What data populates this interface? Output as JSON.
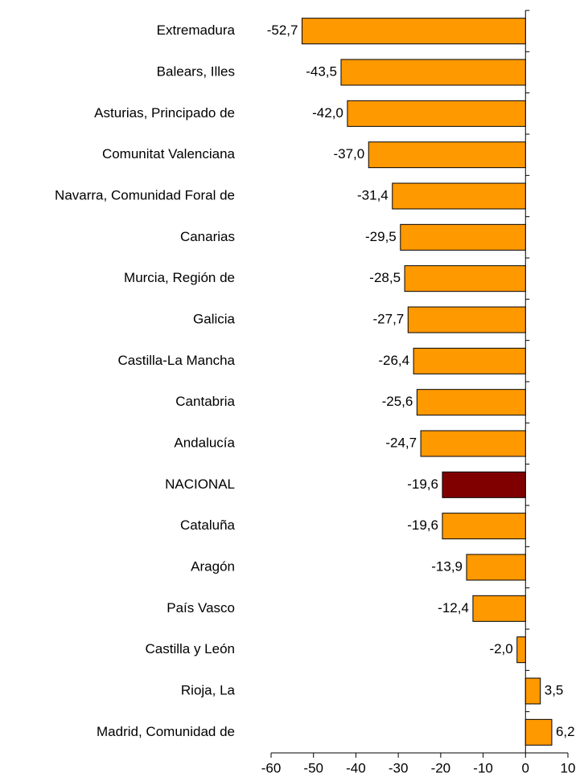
{
  "chart_data": {
    "type": "hbar",
    "categories": [
      "Extremadura",
      "Balears, Illes",
      "Asturias, Principado de",
      "Comunitat Valenciana",
      "Navarra, Comunidad Foral de",
      "Canarias",
      "Murcia, Región de",
      "Galicia",
      "Castilla-La Mancha",
      "Cantabria",
      "Andalucía",
      "NACIONAL",
      "Cataluña",
      "Aragón",
      "País Vasco",
      "Castilla y León",
      "Rioja, La",
      "Madrid, Comunidad de"
    ],
    "values": [
      -52.7,
      -43.5,
      -42.0,
      -37.0,
      -31.4,
      -29.5,
      -28.5,
      -27.7,
      -26.4,
      -25.6,
      -24.7,
      -19.6,
      -19.6,
      -13.9,
      -12.4,
      -2.0,
      3.5,
      6.2
    ],
    "value_labels": [
      "-52,7",
      "-43,5",
      "-42,0",
      "-37,0",
      "-31,4",
      "-29,5",
      "-28,5",
      "-27,7",
      "-26,4",
      "-25,6",
      "-24,7",
      "-19,6",
      "-19,6",
      "-13,9",
      "-12,4",
      "-2,0",
      "3,5",
      "6,2"
    ],
    "colors": [
      "#ff9900",
      "#ff9900",
      "#ff9900",
      "#ff9900",
      "#ff9900",
      "#ff9900",
      "#ff9900",
      "#ff9900",
      "#ff9900",
      "#ff9900",
      "#ff9900",
      "#800000",
      "#ff9900",
      "#ff9900",
      "#ff9900",
      "#ff9900",
      "#ff9900",
      "#ff9900"
    ],
    "xlim": [
      -60,
      10
    ],
    "xticks": [
      -60,
      -50,
      -40,
      -30,
      -20,
      -10,
      0,
      10
    ]
  }
}
